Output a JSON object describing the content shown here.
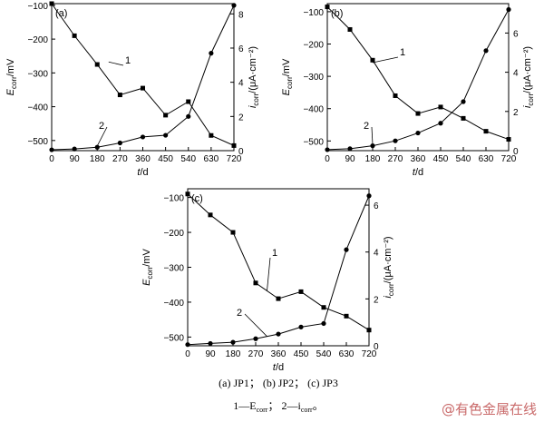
{
  "chart_data": [
    {
      "type": "line",
      "panel_label": "(a)",
      "x": [
        0,
        90,
        180,
        270,
        360,
        450,
        540,
        630,
        720
      ],
      "xticks": [
        "0",
        "90",
        "180",
        "270",
        "360",
        "450",
        "540",
        "630",
        "720"
      ],
      "xlim": [
        0,
        720
      ],
      "y_left": {
        "label_main": "E",
        "label_sub": "corr",
        "label_unit": "/mV",
        "lim": [
          -530,
          -95
        ],
        "ticks": [
          -100,
          -200,
          -300,
          -400,
          -500
        ]
      },
      "y_right": {
        "label_main": "i",
        "label_sub": "corr",
        "label_unit": "/(μA·cm⁻²)",
        "lim": [
          0,
          8.6
        ],
        "ticks": [
          0,
          2,
          4,
          6,
          8
        ]
      },
      "series": [
        {
          "name": "1",
          "axis": "left",
          "marker": "square",
          "values": [
            -95,
            -190,
            -275,
            -365,
            -345,
            -425,
            -385,
            -485,
            -515
          ]
        },
        {
          "name": "2",
          "axis": "right",
          "marker": "circle",
          "values": [
            0.05,
            0.1,
            0.2,
            0.45,
            0.8,
            0.9,
            2.0,
            5.7,
            8.5
          ]
        }
      ],
      "series_labels": [
        "1",
        "2"
      ],
      "xlabel": "t/d"
    },
    {
      "type": "line",
      "panel_label": "(b)",
      "x": [
        0,
        90,
        180,
        270,
        360,
        450,
        540,
        630,
        720
      ],
      "xticks": [
        "0",
        "90",
        "180",
        "270",
        "360",
        "450",
        "540",
        "630",
        "720"
      ],
      "xlim": [
        0,
        720
      ],
      "y_left": {
        "label_main": "E",
        "label_sub": "corr",
        "label_unit": "/mV",
        "lim": [
          -530,
          -75
        ],
        "ticks": [
          -100,
          -200,
          -300,
          -400,
          -500
        ]
      },
      "y_right": {
        "label_main": "i",
        "label_sub": "corr",
        "label_unit": "/(μA·cm⁻²)",
        "lim": [
          0,
          7.5
        ],
        "ticks": [
          0,
          2,
          4,
          6
        ]
      },
      "series": [
        {
          "name": "1",
          "axis": "left",
          "marker": "square",
          "values": [
            -85,
            -155,
            -250,
            -360,
            -415,
            -395,
            -430,
            -470,
            -495
          ]
        },
        {
          "name": "2",
          "axis": "right",
          "marker": "circle",
          "values": [
            0.05,
            0.1,
            0.25,
            0.5,
            0.9,
            1.4,
            2.5,
            5.1,
            7.2
          ]
        }
      ],
      "series_labels": [
        "1",
        "2"
      ],
      "xlabel": "t/d"
    },
    {
      "type": "line",
      "panel_label": "(c)",
      "x": [
        0,
        90,
        180,
        270,
        360,
        450,
        540,
        630,
        720
      ],
      "xticks": [
        "0",
        "90",
        "180",
        "270",
        "360",
        "450",
        "540",
        "630",
        "720"
      ],
      "xlim": [
        0,
        720
      ],
      "y_left": {
        "label_main": "E",
        "label_sub": "corr",
        "label_unit": "/mV",
        "lim": [
          -525,
          -75
        ],
        "ticks": [
          -100,
          -200,
          -300,
          -400,
          -500
        ]
      },
      "y_right": {
        "label_main": "i",
        "label_sub": "corr",
        "label_unit": "/(μA·cm⁻²)",
        "lim": [
          0,
          6.7
        ],
        "ticks": [
          0,
          2,
          4,
          6
        ]
      },
      "series": [
        {
          "name": "1",
          "axis": "left",
          "marker": "square",
          "values": [
            -90,
            -150,
            -200,
            -345,
            -390,
            -370,
            -415,
            -440,
            -480
          ]
        },
        {
          "name": "2",
          "axis": "right",
          "marker": "circle",
          "values": [
            0.05,
            0.1,
            0.15,
            0.3,
            0.5,
            0.8,
            0.95,
            4.1,
            6.4
          ]
        }
      ],
      "series_labels": [
        "1",
        "2"
      ],
      "xlabel": "t/d"
    }
  ],
  "caption": {
    "line1": "(a) JP1； (b) JP2； (c) JP3",
    "line2_prefix": "1—E",
    "line2_sub1": "corr",
    "line2_mid": "； 2—i",
    "line2_sub2": "corr",
    "line2_suffix": "。"
  },
  "watermark": "@有色金属在线",
  "colors": {
    "line": "#000000",
    "background": "#ffffff",
    "watermark": "#c96a6a"
  }
}
